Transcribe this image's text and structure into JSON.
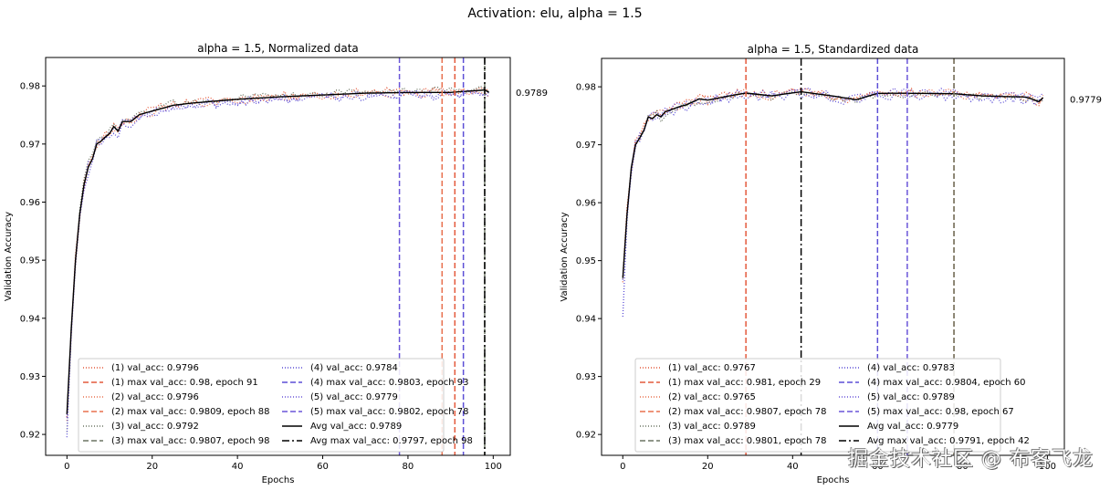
{
  "chart_data": {
    "suptitle": "Activation: elu, alpha = 1.5",
    "colors": {
      "run1": "#e45a3c",
      "run2": "#e8704e",
      "run3": "#6b7563",
      "run4": "#5c4fd6",
      "run5": "#6a55d8",
      "avg": "#000000"
    },
    "subplots": [
      {
        "type": "line",
        "title": "alpha = 1.5, Normalized data",
        "xlabel": "Epochs",
        "ylabel": "Validation Accuracy",
        "xlim": [
          -5,
          104
        ],
        "ylim": [
          0.9164,
          0.9849
        ],
        "xticks": [
          0,
          20,
          40,
          60,
          80,
          100
        ],
        "yticks": [
          0.92,
          0.93,
          0.94,
          0.95,
          0.96,
          0.97,
          0.98
        ],
        "end_label": "0.9789",
        "end_value": 0.9789,
        "legend_position": "lower-right",
        "avg_curve": {
          "start": 0.9235,
          "plateau": 0.979,
          "keypoints": [
            [
              0,
              0.9235
            ],
            [
              1,
              0.938
            ],
            [
              2,
              0.95
            ],
            [
              3,
              0.958
            ],
            [
              4,
              0.963
            ],
            [
              5,
              0.966
            ],
            [
              6,
              0.9675
            ],
            [
              7,
              0.97
            ],
            [
              8,
              0.9705
            ],
            [
              9,
              0.9712
            ],
            [
              10,
              0.9718
            ],
            [
              11,
              0.973
            ],
            [
              12,
              0.9722
            ],
            [
              13,
              0.974
            ],
            [
              15,
              0.974
            ],
            [
              17,
              0.9752
            ],
            [
              20,
              0.9758
            ],
            [
              25,
              0.9768
            ],
            [
              30,
              0.9772
            ],
            [
              40,
              0.9778
            ],
            [
              50,
              0.9782
            ],
            [
              60,
              0.9785
            ],
            [
              70,
              0.9788
            ],
            [
              80,
              0.9789
            ],
            [
              90,
              0.9789
            ],
            [
              98,
              0.9793
            ],
            [
              99,
              0.9789
            ]
          ]
        },
        "series": [
          {
            "name": "(1) val_acc",
            "value": 0.9796,
            "style": "dotted",
            "color_key": "run1",
            "offset": 0.0002,
            "noise": 0.0007
          },
          {
            "name": "(2) val_acc",
            "value": 0.9796,
            "style": "dotted",
            "color_key": "run2",
            "offset": -0.0002,
            "noise": 0.0007
          },
          {
            "name": "(3) val_acc",
            "value": 0.9792,
            "style": "dotted",
            "color_key": "run3",
            "offset": 0.0003,
            "noise": 0.0006
          },
          {
            "name": "(4) val_acc",
            "value": 0.9784,
            "style": "dotted",
            "color_key": "run4",
            "offset": -0.0005,
            "noise": 0.0008
          },
          {
            "name": "(5) val_acc",
            "value": 0.9779,
            "style": "dotted",
            "color_key": "run5",
            "offset": -0.0003,
            "noise": 0.0007
          },
          {
            "name": "Avg val_acc",
            "value": 0.9789,
            "style": "solid",
            "color_key": "avg"
          }
        ],
        "vlines": [
          {
            "run": "(1)",
            "epoch": 91,
            "max_val_acc": 0.98,
            "style": "dashed",
            "color_key": "run1"
          },
          {
            "run": "(2)",
            "epoch": 88,
            "max_val_acc": 0.9809,
            "style": "dashed",
            "color_key": "run2"
          },
          {
            "run": "(3)",
            "epoch": 98,
            "max_val_acc": 0.9807,
            "style": "dashed",
            "color_key": "run3"
          },
          {
            "run": "(4)",
            "epoch": 93,
            "max_val_acc": 0.9803,
            "style": "dashed",
            "color_key": "run4"
          },
          {
            "run": "(5)",
            "epoch": 78,
            "max_val_acc": 0.9802,
            "style": "dashed",
            "color_key": "run5"
          },
          {
            "run": "Avg",
            "epoch": 98,
            "max_val_acc": 0.9797,
            "style": "dashdot",
            "color_key": "avg"
          }
        ],
        "legend": [
          {
            "text": "(1) val_acc: 0.9796",
            "style": "dotted",
            "color_key": "run1"
          },
          {
            "text": "(1) max val_acc: 0.98, epoch 91",
            "style": "dashed",
            "color_key": "run1"
          },
          {
            "text": "(2) val_acc: 0.9796",
            "style": "dotted",
            "color_key": "run2"
          },
          {
            "text": "(2) max val_acc: 0.9809, epoch 88",
            "style": "dashed",
            "color_key": "run2"
          },
          {
            "text": "(3) val_acc: 0.9792",
            "style": "dotted",
            "color_key": "run3"
          },
          {
            "text": "(3) max val_acc: 0.9807, epoch 98",
            "style": "dashed",
            "color_key": "run3"
          },
          {
            "text": "(4) val_acc: 0.9784",
            "style": "dotted",
            "color_key": "run4"
          },
          {
            "text": "(4) max val_acc: 0.9803, epoch 93",
            "style": "dashed",
            "color_key": "run4"
          },
          {
            "text": "(5) val_acc: 0.9779",
            "style": "dotted",
            "color_key": "run5"
          },
          {
            "text": "(5) max val_acc: 0.9802, epoch 78",
            "style": "dashed",
            "color_key": "run5"
          },
          {
            "text": "Avg val_acc: 0.9789",
            "style": "solid",
            "color_key": "avg"
          },
          {
            "text": "Avg max val_acc: 0.9797, epoch 98",
            "style": "dashdot",
            "color_key": "avg"
          }
        ]
      },
      {
        "type": "line",
        "title": "alpha = 1.5, Standardized data",
        "xlabel": "Epochs",
        "ylabel": "Validation Accuracy",
        "xlim": [
          -5,
          104
        ],
        "ylim": [
          0.9164,
          0.9849
        ],
        "xticks": [
          0,
          20,
          40,
          60,
          80,
          100
        ],
        "yticks": [
          0.92,
          0.93,
          0.94,
          0.95,
          0.96,
          0.97,
          0.98
        ],
        "end_label": "0.9779",
        "end_value": 0.9779,
        "legend_position": "lower-right",
        "avg_curve": {
          "start": 0.947,
          "plateau": 0.9783,
          "keypoints": [
            [
              0,
              0.947
            ],
            [
              1,
              0.958
            ],
            [
              2,
              0.966
            ],
            [
              3,
              0.97
            ],
            [
              4,
              0.9712
            ],
            [
              5,
              0.9725
            ],
            [
              6,
              0.9748
            ],
            [
              7,
              0.9745
            ],
            [
              8,
              0.9752
            ],
            [
              9,
              0.9748
            ],
            [
              10,
              0.9757
            ],
            [
              12,
              0.9762
            ],
            [
              15,
              0.9768
            ],
            [
              18,
              0.9778
            ],
            [
              20,
              0.9776
            ],
            [
              25,
              0.9783
            ],
            [
              29,
              0.9788
            ],
            [
              35,
              0.9783
            ],
            [
              42,
              0.979
            ],
            [
              50,
              0.9782
            ],
            [
              55,
              0.9776
            ],
            [
              60,
              0.9787
            ],
            [
              67,
              0.9787
            ],
            [
              78,
              0.9786
            ],
            [
              85,
              0.9782
            ],
            [
              90,
              0.9781
            ],
            [
              95,
              0.978
            ],
            [
              98,
              0.9772
            ],
            [
              99,
              0.9779
            ]
          ]
        },
        "series": [
          {
            "name": "(1) val_acc",
            "value": 0.9767,
            "style": "dotted",
            "color_key": "run1",
            "offset": 0.0002,
            "noise": 0.0007
          },
          {
            "name": "(2) val_acc",
            "value": 0.9765,
            "style": "dotted",
            "color_key": "run2",
            "offset": 0.0,
            "noise": 0.0008
          },
          {
            "name": "(3) val_acc",
            "value": 0.9789,
            "style": "dotted",
            "color_key": "run3",
            "offset": -0.0002,
            "noise": 0.0006
          },
          {
            "name": "(4) val_acc",
            "value": 0.9783,
            "style": "dotted",
            "color_key": "run4",
            "offset": -0.0004,
            "noise": 0.0008
          },
          {
            "name": "(5) val_acc",
            "value": 0.9789,
            "style": "dotted",
            "color_key": "run5",
            "offset": 0.0002,
            "noise": 0.0007
          },
          {
            "name": "Avg val_acc",
            "value": 0.9779,
            "style": "solid",
            "color_key": "avg"
          }
        ],
        "vlines": [
          {
            "run": "(1)",
            "epoch": 29,
            "max_val_acc": 0.981,
            "style": "dashed",
            "color_key": "run1"
          },
          {
            "run": "(2)",
            "epoch": 78,
            "max_val_acc": 0.9807,
            "style": "dashed",
            "color_key": "run2"
          },
          {
            "run": "(3)",
            "epoch": 78,
            "max_val_acc": 0.9801,
            "style": "dashed",
            "color_key": "run3"
          },
          {
            "run": "(4)",
            "epoch": 60,
            "max_val_acc": 0.9804,
            "style": "dashed",
            "color_key": "run4"
          },
          {
            "run": "(5)",
            "epoch": 67,
            "max_val_acc": 0.98,
            "style": "dashed",
            "color_key": "run5"
          },
          {
            "run": "Avg",
            "epoch": 42,
            "max_val_acc": 0.9791,
            "style": "dashdot",
            "color_key": "avg"
          }
        ],
        "legend": [
          {
            "text": "(1) val_acc: 0.9767",
            "style": "dotted",
            "color_key": "run1"
          },
          {
            "text": "(1) max val_acc: 0.981, epoch 29",
            "style": "dashed",
            "color_key": "run1"
          },
          {
            "text": "(2) val_acc: 0.9765",
            "style": "dotted",
            "color_key": "run2"
          },
          {
            "text": "(2) max val_acc: 0.9807, epoch 78",
            "style": "dashed",
            "color_key": "run2"
          },
          {
            "text": "(3) val_acc: 0.9789",
            "style": "dotted",
            "color_key": "run3"
          },
          {
            "text": "(3) max val_acc: 0.9801, epoch 78",
            "style": "dashed",
            "color_key": "run3"
          },
          {
            "text": "(4) val_acc: 0.9783",
            "style": "dotted",
            "color_key": "run4"
          },
          {
            "text": "(4) max val_acc: 0.9804, epoch 60",
            "style": "dashed",
            "color_key": "run4"
          },
          {
            "text": "(5) val_acc: 0.9789",
            "style": "dotted",
            "color_key": "run5"
          },
          {
            "text": "(5) max val_acc: 0.98, epoch 67",
            "style": "dashed",
            "color_key": "run5"
          },
          {
            "text": "Avg val_acc: 0.9779",
            "style": "solid",
            "color_key": "avg"
          },
          {
            "text": "Avg max val_acc: 0.9791, epoch 42",
            "style": "dashdot",
            "color_key": "avg"
          }
        ]
      }
    ]
  },
  "watermark": "掘金技术社区 @ 布客飞龙"
}
